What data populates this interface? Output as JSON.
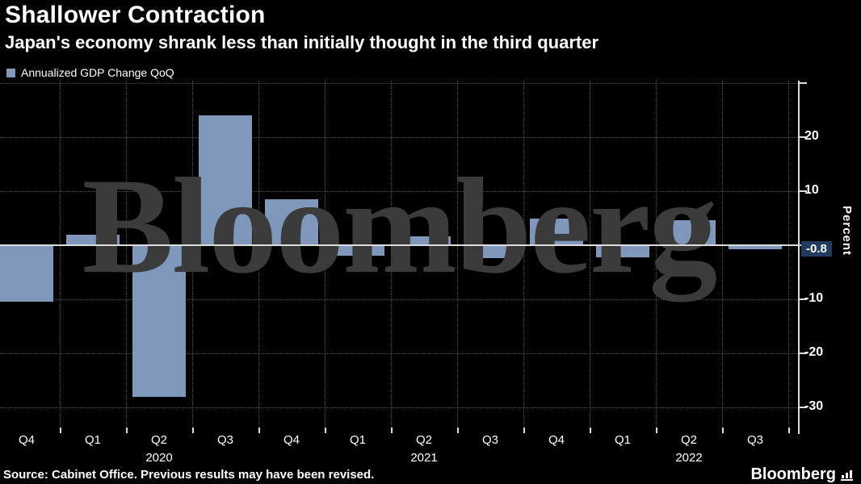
{
  "header": {
    "title": "Shallower Contraction",
    "subtitle": "Japan's economy shrank less than initially thought in the third quarter",
    "legend_label": "Annualized GDP Change QoQ"
  },
  "watermark_text": "Bloomberg",
  "colors": {
    "background": "#000000",
    "bar": "#7e97ba",
    "value_box_bg": "#213c60",
    "watermark": "#3b3b3b",
    "gridline": "#4a4a4a",
    "axis": "#dcdcdc"
  },
  "chart_data": {
    "type": "bar",
    "series_name": "Annualized GDP Change QoQ",
    "title": "Shallower Contraction",
    "categories": [
      "Q4 2019",
      "Q1 2020",
      "Q2 2020",
      "Q3 2020",
      "Q4 2020",
      "Q1 2021",
      "Q2 2021",
      "Q3 2021",
      "Q4 2021",
      "Q1 2022",
      "Q2 2022",
      "Q3 2022"
    ],
    "x_tick_labels": [
      "Q4",
      "Q1",
      "Q2",
      "Q3",
      "Q4",
      "Q1",
      "Q2",
      "Q3",
      "Q4",
      "Q1",
      "Q2",
      "Q3"
    ],
    "year_labels": [
      {
        "text": "2020",
        "index": 2
      },
      {
        "text": "2021",
        "index": 6
      },
      {
        "text": "2022",
        "index": 10
      }
    ],
    "values": [
      -10.5,
      2.0,
      -28.0,
      24.0,
      8.5,
      -1.9,
      1.7,
      -2.4,
      5.0,
      -2.2,
      4.7,
      -0.8
    ],
    "xlabel": "",
    "ylabel": "Percent",
    "ylim": [
      -33.5,
      30.5
    ],
    "y_ticks": [
      30,
      20,
      10,
      0,
      -10,
      -20,
      -30
    ],
    "y_tick_labels": [
      "",
      "20",
      "10",
      "",
      "-10",
      "-20",
      "-30"
    ],
    "last_value_label": "-0.8",
    "grid": "dotted",
    "legend_position": "top-left",
    "zero_line": true
  },
  "footer": {
    "source": "Source: Cabinet Office. Previous results may have been revised.",
    "brand": "Bloomberg"
  }
}
